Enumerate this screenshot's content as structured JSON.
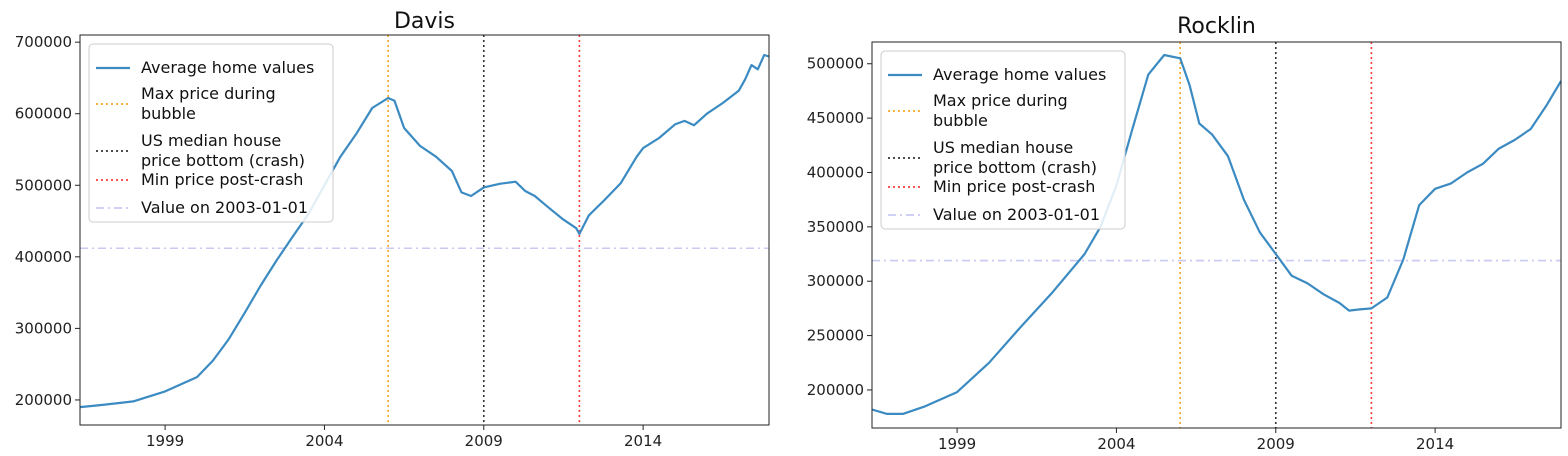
{
  "chart_data": [
    {
      "type": "line",
      "title": "Davis",
      "xlabel": "",
      "ylabel": "",
      "x_range": [
        1996.33,
        2017.95
      ],
      "ylim": [
        165000,
        710000
      ],
      "x_ticks": [
        1999,
        2004,
        2009,
        2014
      ],
      "y_ticks": [
        200000,
        300000,
        400000,
        500000,
        600000,
        700000
      ],
      "grid": false,
      "legend_placement": "top-left",
      "series": [
        {
          "name": "Average home values",
          "color": "#3b8bc2",
          "style": "solid",
          "x": [
            1996.33,
            1997.0,
            1998.0,
            1999.0,
            2000.0,
            2000.5,
            2001.0,
            2001.5,
            2002.0,
            2002.5,
            2003.0,
            2003.5,
            2004.0,
            2004.5,
            2005.0,
            2005.5,
            2006.0,
            2006.2,
            2006.5,
            2007.0,
            2007.5,
            2008.0,
            2008.3,
            2008.6,
            2009.0,
            2009.5,
            2010.0,
            2010.3,
            2010.6,
            2011.0,
            2011.5,
            2011.9,
            2012.0,
            2012.3,
            2012.8,
            2013.3,
            2013.8,
            2014.0,
            2014.5,
            2015.0,
            2015.3,
            2015.6,
            2016.0,
            2016.5,
            2017.0,
            2017.2,
            2017.4,
            2017.6,
            2017.8,
            2017.95
          ],
          "y": [
            190000,
            193000,
            198000,
            212000,
            232000,
            255000,
            285000,
            322000,
            360000,
            395000,
            428000,
            460000,
            500000,
            540000,
            572000,
            608000,
            622000,
            618000,
            580000,
            555000,
            540000,
            520000,
            490000,
            485000,
            497000,
            502000,
            505000,
            492000,
            485000,
            470000,
            452000,
            440000,
            432000,
            458000,
            480000,
            503000,
            540000,
            552000,
            566000,
            585000,
            590000,
            584000,
            600000,
            615000,
            632000,
            648000,
            668000,
            662000,
            682000,
            680000
          ]
        },
        {
          "name": "Max price during bubble",
          "color": "#f5a623",
          "style": "dotted",
          "x": 2006.0
        },
        {
          "name": "US median house price bottom (crash)",
          "color": "#333333",
          "style": "dotted",
          "x": 2009.0
        },
        {
          "name": "Min price post-crash",
          "color": "#ff3b3b",
          "style": "dotted",
          "x": 2012.0
        },
        {
          "name": "Value on 2003-01-01",
          "color": "#c9c9f2",
          "style": "dashdot",
          "y": 412000
        }
      ]
    },
    {
      "type": "line",
      "title": "Rocklin",
      "xlabel": "",
      "ylabel": "",
      "x_range": [
        1996.33,
        2017.95
      ],
      "ylim": [
        165000,
        520000
      ],
      "x_ticks": [
        1999,
        2004,
        2009,
        2014
      ],
      "y_ticks": [
        200000,
        250000,
        300000,
        350000,
        400000,
        450000,
        500000
      ],
      "grid": false,
      "legend_placement": "top-left",
      "series": [
        {
          "name": "Average home values",
          "color": "#3b8bc2",
          "style": "solid",
          "x": [
            1996.33,
            1996.8,
            1997.3,
            1998.0,
            1999.0,
            2000.0,
            2001.0,
            2002.0,
            2003.0,
            2003.5,
            2004.0,
            2004.5,
            2005.0,
            2005.5,
            2006.0,
            2006.3,
            2006.6,
            2007.0,
            2007.5,
            2008.0,
            2008.5,
            2009.0,
            2009.5,
            2010.0,
            2010.5,
            2011.0,
            2011.3,
            2011.6,
            2012.0,
            2012.5,
            2013.0,
            2013.5,
            2014.0,
            2014.5,
            2015.0,
            2015.5,
            2016.0,
            2016.5,
            2017.0,
            2017.5,
            2017.95
          ],
          "y": [
            182000,
            178000,
            178000,
            185000,
            198000,
            225000,
            258000,
            290000,
            325000,
            350000,
            388000,
            440000,
            490000,
            508000,
            505000,
            480000,
            445000,
            435000,
            415000,
            375000,
            345000,
            325000,
            305000,
            298000,
            288000,
            280000,
            273000,
            274000,
            275000,
            285000,
            320000,
            370000,
            385000,
            390000,
            400000,
            408000,
            422000,
            430000,
            440000,
            462000,
            484000
          ]
        },
        {
          "name": "Max price during bubble",
          "color": "#f5a623",
          "style": "dotted",
          "x": 2006.0
        },
        {
          "name": "US median house price bottom (crash)",
          "color": "#333333",
          "style": "dotted",
          "x": 2009.0
        },
        {
          "name": "Min price post-crash",
          "color": "#ff3b3b",
          "style": "dotted",
          "x": 2012.0
        },
        {
          "name": "Value on 2003-01-01",
          "color": "#c9c9f2",
          "style": "dashdot",
          "y": 319000
        }
      ]
    }
  ],
  "legend_labels": {
    "avg": "Average home values",
    "max_line1": "Max price during",
    "max_line2": "bubble",
    "us_line1": "US median house",
    "us_line2": "price bottom (crash)",
    "min": "Min price post-crash",
    "ref": "Value on 2003-01-01"
  }
}
